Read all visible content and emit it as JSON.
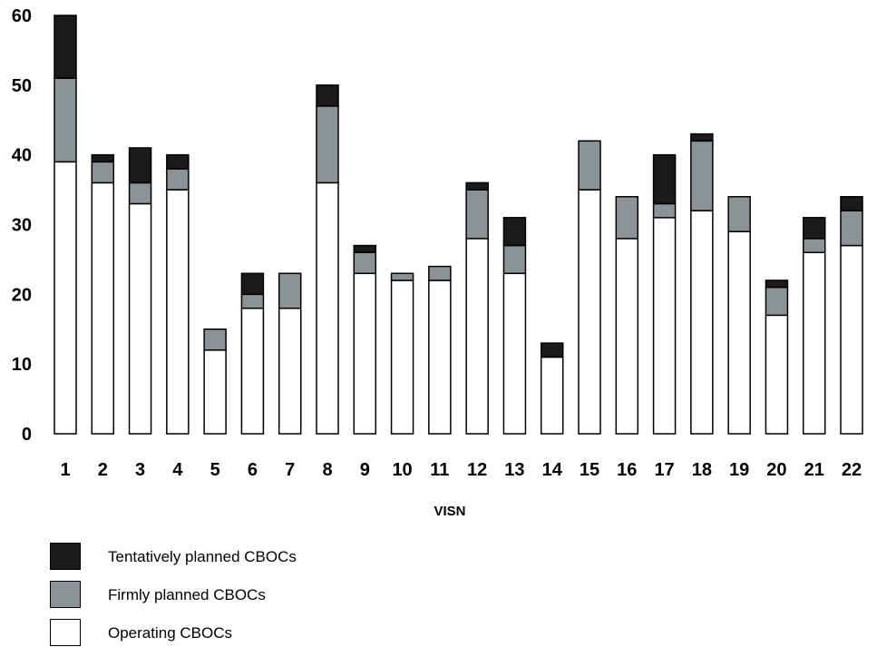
{
  "chart_data": {
    "type": "bar",
    "stacked": true,
    "xlabel": "VISN",
    "ylabel": "",
    "ylim": [
      0,
      60
    ],
    "yticks": [
      0,
      10,
      20,
      30,
      40,
      50,
      60
    ],
    "categories": [
      "1",
      "2",
      "3",
      "4",
      "5",
      "6",
      "7",
      "8",
      "9",
      "10",
      "11",
      "12",
      "13",
      "14",
      "15",
      "16",
      "17",
      "18",
      "19",
      "20",
      "21",
      "22"
    ],
    "series": [
      {
        "name": "Operating CBOCs",
        "color": "#ffffff",
        "values": [
          39,
          36,
          33,
          35,
          12,
          18,
          18,
          36,
          23,
          22,
          22,
          28,
          23,
          11,
          35,
          28,
          31,
          32,
          29,
          17,
          26,
          27
        ]
      },
      {
        "name": "Firmly planned CBOCs",
        "color": "#8c9397",
        "values": [
          12,
          3,
          3,
          3,
          3,
          2,
          5,
          11,
          3,
          1,
          2,
          7,
          4,
          0,
          7,
          6,
          2,
          10,
          5,
          4,
          2,
          5
        ]
      },
      {
        "name": "Tentatively planned CBOCs",
        "color": "#1c1a1b",
        "values": [
          9,
          1,
          5,
          2,
          0,
          3,
          0,
          3,
          1,
          0,
          0,
          1,
          4,
          2,
          0,
          0,
          7,
          1,
          0,
          1,
          3,
          2
        ]
      }
    ],
    "legend": {
      "position": "bottom-left",
      "order": [
        "Tentatively planned CBOCs",
        "Firmly planned CBOCs",
        "Operating CBOCs"
      ]
    },
    "grid": false
  }
}
